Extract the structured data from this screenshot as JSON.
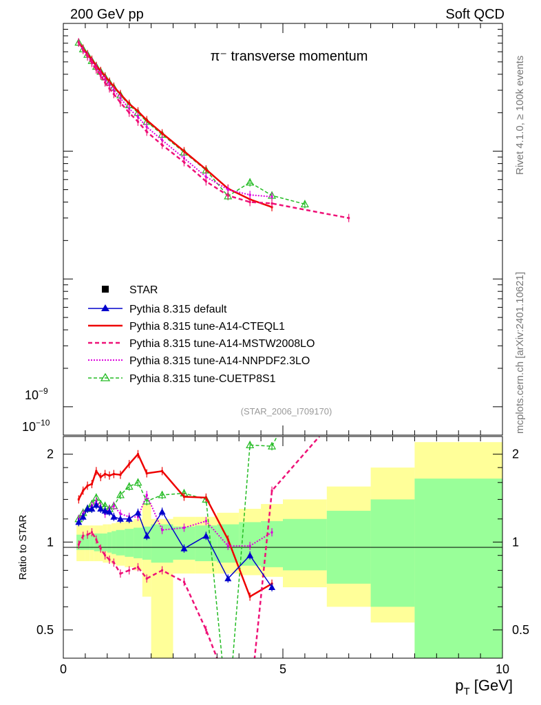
{
  "header": {
    "left_label": "200 GeV pp",
    "right_label": "Soft QCD",
    "side_label_top": "Rivet 4.1.0, ≥ 100k events",
    "side_label_bottom": "mcplots.cern.ch [arXiv:2401.10621]"
  },
  "colors": {
    "default": "#0000cc",
    "cteql1": "#ee0000",
    "mstw": "#ee1177",
    "nnpdf": "#dd00dd",
    "cuetp8s1": "#22bb22",
    "band_yellow": "#ffff99",
    "band_green": "#99ff99"
  },
  "chart_data": [
    {
      "type": "line",
      "title": "π⁻ transverse momentum",
      "watermark": "(STAR_2006_I709170)",
      "xlabel": "",
      "ylabel": "",
      "yscale": "log",
      "xlim": [
        0,
        10
      ],
      "ylim": [
        6e-11,
        1e-07
      ],
      "yticks": [
        {
          "value": 1e-09,
          "base": "10",
          "exp": "−9"
        },
        {
          "value": 1e-10,
          "base": "10",
          "exp": "−10"
        }
      ],
      "legend": {
        "position": "center-left",
        "entries": [
          {
            "label": "STAR",
            "key": "star"
          },
          {
            "label": "Pythia 8.315 default",
            "key": "default"
          },
          {
            "label": "Pythia 8.315 tune-A14-CTEQL1",
            "key": "cteql1"
          },
          {
            "label": "Pythia 8.315 tune-A14-MSTW2008LO",
            "key": "mstw"
          },
          {
            "label": "Pythia 8.315 tune-A14-NNPDF2.3LO",
            "key": "nnpdf"
          },
          {
            "label": "Pythia 8.315 tune-CUETP8S1",
            "key": "cuetp8s1"
          }
        ]
      },
      "series": [
        {
          "key": "cuetp8s1",
          "name": "Pythia 8.315 tune-CUETP8S1",
          "x": [
            0.35,
            0.45,
            0.55,
            0.65,
            0.75,
            0.85,
            0.95,
            1.05,
            1.15,
            1.3,
            1.5,
            1.7,
            1.9,
            2.25,
            2.75,
            3.25,
            3.75,
            4.25,
            4.75,
            5.5
          ],
          "y": [
            7.1e-08,
            6.3e-08,
            5.7e-08,
            5.1e-08,
            4.6e-08,
            4.2e-08,
            3.8e-08,
            3.45e-08,
            3.15e-08,
            2.75e-08,
            2.3e-08,
            2e-08,
            1.7e-08,
            1.35e-08,
            9.8e-09,
            7.1e-09,
            4.45e-09,
            5.7e-09,
            4.5e-09,
            3.85e-09
          ]
        },
        {
          "key": "cteql1",
          "name": "Pythia 8.315 tune-A14-CTEQL1",
          "x": [
            0.35,
            0.45,
            0.55,
            0.65,
            0.75,
            0.85,
            0.95,
            1.05,
            1.15,
            1.3,
            1.5,
            1.7,
            1.9,
            2.25,
            2.75,
            3.25,
            3.75,
            4.25,
            4.75
          ],
          "y": [
            7.1e-08,
            6.35e-08,
            5.75e-08,
            5.2e-08,
            4.65e-08,
            4.25e-08,
            3.85e-08,
            3.5e-08,
            3.2e-08,
            2.8e-08,
            2.35e-08,
            2.05e-08,
            1.75e-08,
            1.38e-08,
            1e-08,
            7.2e-09,
            5.1e-09,
            4.2e-09,
            3.65e-09
          ]
        },
        {
          "key": "nnpdf",
          "name": "Pythia 8.315 tune-A14-NNPDF2.3LO",
          "x": [
            0.35,
            0.45,
            0.55,
            0.65,
            0.75,
            0.85,
            0.95,
            1.05,
            1.15,
            1.3,
            1.5,
            1.7,
            1.9,
            2.25,
            2.75,
            3.25,
            3.75,
            4.25,
            4.75
          ],
          "y": [
            7.1e-08,
            6.2e-08,
            5.6e-08,
            5e-08,
            4.5e-08,
            4.05e-08,
            3.65e-08,
            3.3e-08,
            3e-08,
            2.6e-08,
            2.15e-08,
            1.85e-08,
            1.55e-08,
            1.22e-08,
            8.8e-09,
            6.3e-09,
            5e-09,
            4.55e-09,
            4.4e-09
          ]
        },
        {
          "key": "mstw",
          "name": "Pythia 8.315 tune-A14-MSTW2008LO",
          "x": [
            0.35,
            0.45,
            0.55,
            0.65,
            0.75,
            0.85,
            0.95,
            1.05,
            1.15,
            1.3,
            1.5,
            1.7,
            1.9,
            2.25,
            2.75,
            3.25,
            3.75,
            4.25,
            4.75,
            6.5
          ],
          "y": [
            7.1e-08,
            6.2e-08,
            5.5e-08,
            4.9e-08,
            4.35e-08,
            3.9e-08,
            3.45e-08,
            3.1e-08,
            2.8e-08,
            2.4e-08,
            2e-08,
            1.7e-08,
            1.42e-08,
            1.12e-08,
            8.2e-09,
            5.8e-09,
            4.5e-09,
            4e-09,
            3.9e-09,
            3e-09
          ]
        },
        {
          "key": "default",
          "name": "Pythia 8.315 default",
          "x": [],
          "y": []
        }
      ]
    },
    {
      "type": "line",
      "title": "",
      "xlabel": "p_T [GeV]",
      "xlabel_main": "p",
      "xlabel_sub": "T",
      "xlabel_unit": " [GeV]",
      "ylabel": "Ratio to STAR",
      "xlim": [
        0,
        10
      ],
      "ylim": [
        0.4,
        2.3
      ],
      "xticks": [
        0,
        5,
        10
      ],
      "xtick_labels": [
        "0",
        "5",
        "10"
      ],
      "yticks": [
        0.5,
        1,
        2
      ],
      "ytick_labels": [
        "0.5",
        "1",
        "2"
      ],
      "bands": {
        "edges": [
          0.3,
          0.4,
          0.5,
          0.6,
          0.7,
          0.8,
          0.9,
          1.0,
          1.1,
          1.2,
          1.4,
          1.6,
          1.8,
          2.0,
          2.5,
          3.0,
          3.5,
          4.0,
          4.5,
          5.0,
          6.0,
          7.0,
          8.0,
          10.0
        ],
        "yellow_lo": [
          0.86,
          0.86,
          0.86,
          0.86,
          0.86,
          0.86,
          0.85,
          0.85,
          0.84,
          0.83,
          0.82,
          0.8,
          0.65,
          0.38,
          0.78,
          0.78,
          0.78,
          0.77,
          0.76,
          0.7,
          0.6,
          0.53,
          0.35,
          0.35
        ],
        "yellow_hi": [
          1.14,
          1.14,
          1.14,
          1.14,
          1.14,
          1.14,
          1.15,
          1.15,
          1.16,
          1.17,
          1.18,
          1.2,
          1.35,
          1.2,
          1.22,
          1.22,
          1.26,
          1.3,
          1.35,
          1.4,
          1.55,
          1.8,
          2.2,
          2.2
        ],
        "green_lo": [
          0.94,
          0.94,
          0.94,
          0.94,
          0.93,
          0.93,
          0.93,
          0.92,
          0.91,
          0.9,
          0.89,
          0.88,
          0.87,
          0.85,
          0.87,
          0.86,
          0.85,
          0.83,
          0.82,
          0.8,
          0.72,
          0.6,
          0.35,
          0.35
        ],
        "green_hi": [
          1.06,
          1.06,
          1.06,
          1.06,
          1.07,
          1.07,
          1.07,
          1.08,
          1.09,
          1.1,
          1.11,
          1.12,
          1.13,
          1.15,
          1.13,
          1.14,
          1.15,
          1.17,
          1.18,
          1.2,
          1.28,
          1.4,
          1.65,
          1.65
        ]
      },
      "series": [
        {
          "key": "cuetp8s1",
          "name": "Pythia 8.315 tune-CUETP8S1",
          "x": [
            0.35,
            0.45,
            0.55,
            0.65,
            0.75,
            0.85,
            0.95,
            1.05,
            1.15,
            1.3,
            1.5,
            1.7,
            1.9,
            2.25,
            2.75,
            3.25,
            3.75,
            4.25,
            4.75,
            5.5
          ],
          "y": [
            1.2,
            1.26,
            1.3,
            1.35,
            1.42,
            1.35,
            1.33,
            1.3,
            1.33,
            1.45,
            1.55,
            1.6,
            1.38,
            1.45,
            1.47,
            1.4,
            0.25,
            2.15,
            2.13,
            3.5
          ]
        },
        {
          "key": "cteql1",
          "name": "Pythia 8.315 tune-A14-CTEQL1",
          "x": [
            0.35,
            0.45,
            0.55,
            0.65,
            0.75,
            0.85,
            0.95,
            1.05,
            1.15,
            1.3,
            1.5,
            1.7,
            1.9,
            2.25,
            2.75,
            3.25,
            3.75,
            4.25,
            4.75
          ],
          "y": [
            1.4,
            1.5,
            1.56,
            1.58,
            1.75,
            1.67,
            1.71,
            1.69,
            1.71,
            1.7,
            1.85,
            2.0,
            1.72,
            1.75,
            1.43,
            1.42,
            1.02,
            0.65,
            0.72
          ]
        },
        {
          "key": "nnpdf",
          "name": "Pythia 8.315 tune-A14-NNPDF2.3LO",
          "x": [
            0.35,
            0.45,
            0.55,
            0.65,
            0.75,
            0.85,
            0.95,
            1.05,
            1.15,
            1.3,
            1.5,
            1.7,
            1.9,
            2.25,
            2.75,
            3.25,
            3.75,
            4.25,
            4.75
          ],
          "y": [
            1.2,
            1.25,
            1.3,
            1.33,
            1.38,
            1.32,
            1.25,
            1.3,
            1.33,
            1.25,
            1.22,
            1.22,
            1.45,
            1.1,
            1.12,
            1.18,
            0.97,
            0.97,
            1.08
          ]
        },
        {
          "key": "mstw",
          "name": "Pythia 8.315 tune-A14-MSTW2008LO",
          "x": [
            0.35,
            0.45,
            0.55,
            0.65,
            0.75,
            0.85,
            0.95,
            1.05,
            1.15,
            1.3,
            1.5,
            1.7,
            1.9,
            2.25,
            2.75,
            3.25,
            3.75,
            4.25,
            4.75,
            6.5
          ],
          "y": [
            0.98,
            1.05,
            1.06,
            1.08,
            1.02,
            0.95,
            0.9,
            0.87,
            0.85,
            0.78,
            0.8,
            0.82,
            0.75,
            0.8,
            0.73,
            0.5,
            0.32,
            0.28,
            1.5,
            3.0
          ]
        },
        {
          "key": "default",
          "name": "Pythia 8.315 default",
          "x": [
            0.35,
            0.45,
            0.55,
            0.65,
            0.75,
            0.85,
            0.95,
            1.05,
            1.15,
            1.3,
            1.5,
            1.7,
            1.9,
            2.25,
            2.75,
            3.25,
            3.75,
            4.25,
            4.75
          ],
          "y": [
            1.17,
            1.22,
            1.3,
            1.3,
            1.34,
            1.3,
            1.28,
            1.27,
            1.22,
            1.2,
            1.2,
            1.26,
            1.05,
            1.27,
            0.95,
            1.05,
            0.75,
            0.9,
            0.7
          ]
        }
      ]
    }
  ]
}
